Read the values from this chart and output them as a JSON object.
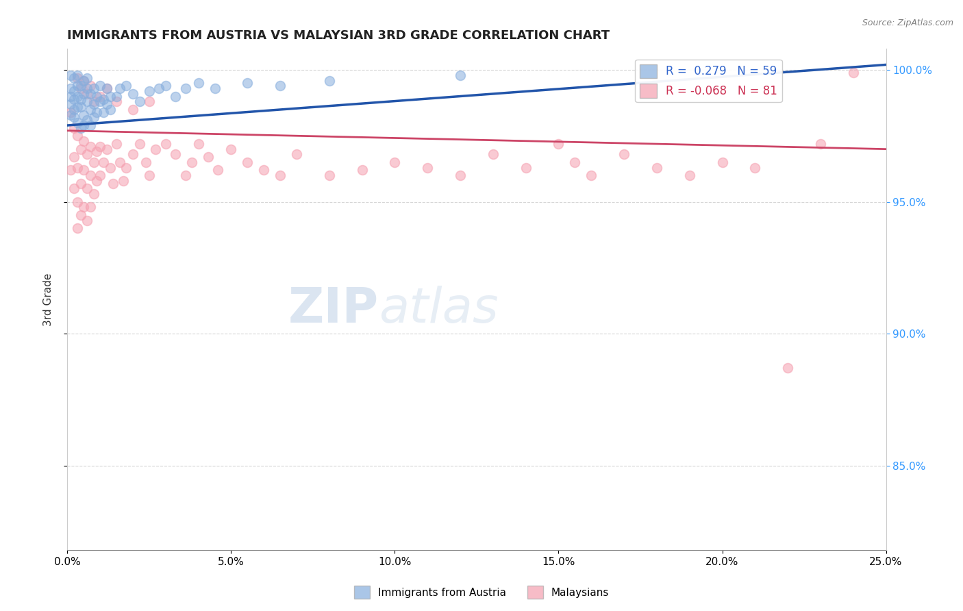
{
  "title": "IMMIGRANTS FROM AUSTRIA VS MALAYSIAN 3RD GRADE CORRELATION CHART",
  "source_text": "Source: ZipAtlas.com",
  "ylabel": "3rd Grade",
  "xlim": [
    0.0,
    0.25
  ],
  "ylim": [
    0.818,
    1.008
  ],
  "xtick_labels": [
    "0.0%",
    "5.0%",
    "10.0%",
    "15.0%",
    "20.0%",
    "25.0%"
  ],
  "xtick_values": [
    0.0,
    0.05,
    0.1,
    0.15,
    0.2,
    0.25
  ],
  "ytick_values": [
    0.85,
    0.9,
    0.95,
    1.0
  ],
  "right_ytick_labels": [
    "100.0%",
    "95.0%",
    "90.0%",
    "85.0%"
  ],
  "right_ytick_values": [
    1.0,
    0.95,
    0.9,
    0.85
  ],
  "legend_R1": "0.279",
  "legend_N1": "59",
  "legend_R2": "-0.068",
  "legend_N2": "81",
  "legend_label1": "Immigrants from Austria",
  "legend_label2": "Malaysians",
  "blue_color": "#87AEDD",
  "pink_color": "#F5A0B0",
  "blue_line_color": "#2255AA",
  "pink_line_color": "#CC4466",
  "watermark_ZIP": "ZIP",
  "watermark_atlas": "atlas",
  "blue_x": [
    0.001,
    0.001,
    0.001,
    0.001,
    0.001,
    0.002,
    0.002,
    0.002,
    0.002,
    0.002,
    0.003,
    0.003,
    0.003,
    0.003,
    0.003,
    0.004,
    0.004,
    0.004,
    0.004,
    0.005,
    0.005,
    0.005,
    0.005,
    0.006,
    0.006,
    0.006,
    0.006,
    0.007,
    0.007,
    0.007,
    0.008,
    0.008,
    0.008,
    0.009,
    0.009,
    0.01,
    0.01,
    0.011,
    0.011,
    0.012,
    0.012,
    0.013,
    0.013,
    0.015,
    0.016,
    0.018,
    0.02,
    0.022,
    0.025,
    0.028,
    0.03,
    0.033,
    0.036,
    0.04,
    0.045,
    0.055,
    0.065,
    0.08,
    0.12
  ],
  "blue_y": [
    0.993,
    0.987,
    0.998,
    0.99,
    0.983,
    0.992,
    0.985,
    0.997,
    0.989,
    0.982,
    0.99,
    0.986,
    0.994,
    0.98,
    0.998,
    0.989,
    0.978,
    0.994,
    0.986,
    0.991,
    0.983,
    0.996,
    0.979,
    0.988,
    0.993,
    0.981,
    0.997,
    0.985,
    0.991,
    0.979,
    0.987,
    0.993,
    0.982,
    0.99,
    0.984,
    0.988,
    0.994,
    0.989,
    0.984,
    0.987,
    0.993,
    0.99,
    0.985,
    0.99,
    0.993,
    0.994,
    0.991,
    0.988,
    0.992,
    0.993,
    0.994,
    0.99,
    0.993,
    0.995,
    0.993,
    0.995,
    0.994,
    0.996,
    0.998
  ],
  "pink_x": [
    0.001,
    0.001,
    0.002,
    0.002,
    0.002,
    0.003,
    0.003,
    0.003,
    0.003,
    0.004,
    0.004,
    0.004,
    0.005,
    0.005,
    0.005,
    0.006,
    0.006,
    0.006,
    0.007,
    0.007,
    0.007,
    0.008,
    0.008,
    0.009,
    0.009,
    0.01,
    0.01,
    0.011,
    0.012,
    0.013,
    0.014,
    0.015,
    0.016,
    0.017,
    0.018,
    0.02,
    0.022,
    0.024,
    0.025,
    0.027,
    0.03,
    0.033,
    0.036,
    0.038,
    0.04,
    0.043,
    0.046,
    0.05,
    0.055,
    0.06,
    0.065,
    0.07,
    0.08,
    0.09,
    0.1,
    0.11,
    0.12,
    0.13,
    0.14,
    0.15,
    0.155,
    0.16,
    0.17,
    0.18,
    0.19,
    0.2,
    0.21,
    0.22,
    0.23,
    0.24,
    0.003,
    0.004,
    0.005,
    0.006,
    0.007,
    0.008,
    0.01,
    0.012,
    0.015,
    0.02,
    0.025
  ],
  "pink_y": [
    0.984,
    0.962,
    0.978,
    0.967,
    0.955,
    0.975,
    0.963,
    0.95,
    0.94,
    0.97,
    0.957,
    0.945,
    0.973,
    0.962,
    0.948,
    0.968,
    0.955,
    0.943,
    0.971,
    0.96,
    0.948,
    0.965,
    0.953,
    0.969,
    0.958,
    0.971,
    0.96,
    0.965,
    0.97,
    0.963,
    0.957,
    0.972,
    0.965,
    0.958,
    0.963,
    0.968,
    0.972,
    0.965,
    0.96,
    0.97,
    0.972,
    0.968,
    0.96,
    0.965,
    0.972,
    0.967,
    0.962,
    0.97,
    0.965,
    0.962,
    0.96,
    0.968,
    0.96,
    0.962,
    0.965,
    0.963,
    0.96,
    0.968,
    0.963,
    0.972,
    0.965,
    0.96,
    0.968,
    0.963,
    0.96,
    0.965,
    0.963,
    0.887,
    0.972,
    0.999,
    0.997,
    0.993,
    0.996,
    0.991,
    0.994,
    0.988,
    0.99,
    0.993,
    0.988,
    0.985,
    0.988
  ],
  "blue_trend_x": [
    0.0,
    0.25
  ],
  "blue_trend_y": [
    0.979,
    1.002
  ],
  "pink_trend_x": [
    0.0,
    0.25
  ],
  "pink_trend_y": [
    0.977,
    0.97
  ]
}
